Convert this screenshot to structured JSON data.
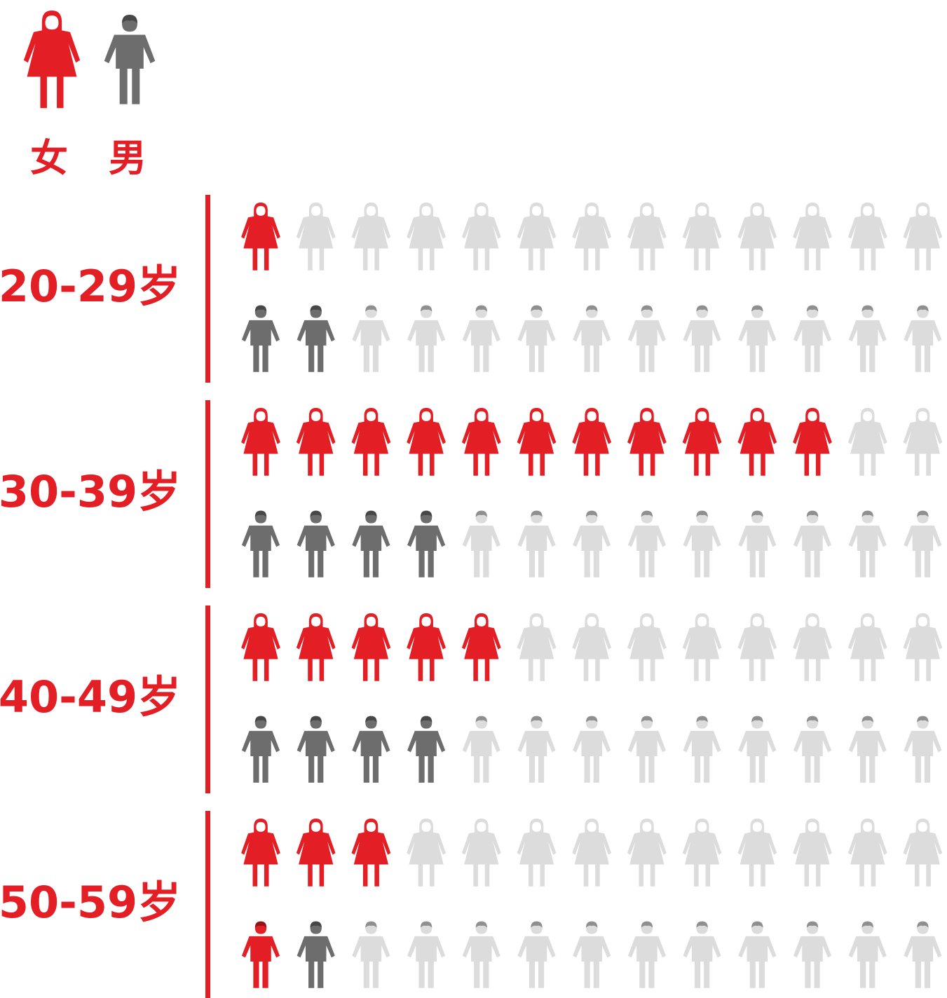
{
  "colors": {
    "female": "#e31e25",
    "male": "#6d6d6d",
    "inactive": "#dcdcdc",
    "accent": "#e31e25"
  },
  "legend": {
    "female_label": "女",
    "male_label": "男"
  },
  "chart_data": {
    "type": "pictogram",
    "total_per_row": 13,
    "groups": [
      {
        "label": "20-29岁",
        "female": 1,
        "male": 2,
        "male_icon_colors": [
          "male",
          "male"
        ]
      },
      {
        "label": "30-39岁",
        "female": 11,
        "male": 4,
        "male_icon_colors": [
          "male",
          "male",
          "male",
          "male"
        ]
      },
      {
        "label": "40-49岁",
        "female": 5,
        "male": 4,
        "male_icon_colors": [
          "male",
          "male",
          "male",
          "male"
        ]
      },
      {
        "label": "50-59岁",
        "female": 3,
        "male": 2,
        "male_icon_colors": [
          "female",
          "male"
        ]
      }
    ]
  }
}
